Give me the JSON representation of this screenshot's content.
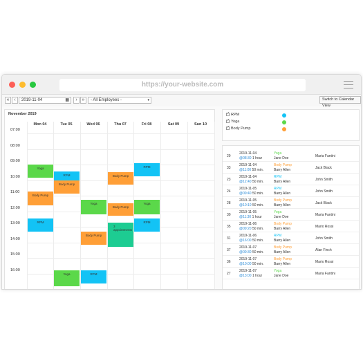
{
  "browser": {
    "url": "https://your-website.com"
  },
  "toolbar": {
    "prev": "‹",
    "next": "›",
    "prev_far": "«",
    "next_far": "»",
    "date": "2019-11-04",
    "employees": "- All Employees -",
    "switch": "Switch to Calendar View"
  },
  "calendar": {
    "title": "November 2019",
    "days": [
      "Mon 04",
      "Tue 05",
      "Wed 06",
      "Thu 07",
      "Fri 08",
      "Sat 09",
      "Sun 10"
    ],
    "times": [
      "07:00",
      "08:00",
      "09:00",
      "10:00",
      "11:00",
      "12:00",
      "13:00",
      "14:00",
      "15:00",
      "16:00"
    ],
    "events": [
      {
        "label": "Yoga",
        "day": 0,
        "start": 9.0,
        "end": 9.83,
        "color": "#5bd84a"
      },
      {
        "label": "RPM",
        "day": 1,
        "start": 9.45,
        "end": 10.2,
        "color": "#13c3f5"
      },
      {
        "label": "Body Pump",
        "day": 1,
        "start": 10.0,
        "end": 10.85,
        "color": "#ff9f37"
      },
      {
        "label": "Body Pump",
        "day": 0,
        "start": 10.75,
        "end": 11.6,
        "color": "#ff9f37"
      },
      {
        "label": "RPM",
        "day": 0,
        "start": 12.45,
        "end": 13.3,
        "color": "#13c3f5"
      },
      {
        "label": "Yoga",
        "day": 2,
        "start": 11.25,
        "end": 12.2,
        "color": "#5bd84a"
      },
      {
        "label": "Body Pump",
        "day": 3,
        "start": 9.5,
        "end": 10.3,
        "color": "#ff9f37"
      },
      {
        "label": "Body Pump",
        "day": 3,
        "start": 11.5,
        "end": 12.3,
        "color": "#ff9f37"
      },
      {
        "label": "RPM",
        "day": 4,
        "start": 8.9,
        "end": 9.75,
        "color": "#13c3f5"
      },
      {
        "label": "Yoga",
        "day": 4,
        "start": 11.25,
        "end": 12.2,
        "color": "#5bd84a"
      },
      {
        "label": "RPM",
        "day": 4,
        "start": 12.45,
        "end": 13.3,
        "color": "#13c3f5"
      },
      {
        "label": "Body Pump",
        "day": 2,
        "start": 13.3,
        "end": 14.15,
        "color": "#ff9f37"
      },
      {
        "label": "3 appointments",
        "day": 3,
        "start": 12.75,
        "end": 14.3,
        "color": "#1dcc92",
        "left": true
      },
      {
        "label": "Yoga",
        "day": 1,
        "start": 15.8,
        "end": 16.8,
        "color": "#5bd84a"
      },
      {
        "label": "RPM",
        "day": 2,
        "start": 15.8,
        "end": 16.65,
        "color": "#13c3f5"
      }
    ]
  },
  "legend": [
    {
      "label": "RPM",
      "color": "#13c3f5"
    },
    {
      "label": "Yoga",
      "color": "#5bd84a"
    },
    {
      "label": "Body Pump",
      "color": "#ff9f37"
    }
  ],
  "appointments": [
    {
      "id": "29",
      "date": "2019-11-04",
      "time": "@08:30 1 hour",
      "service": "Yoga",
      "service_color": "#5bd84a",
      "employee": "Jane Doe",
      "customer": "Maria Fantini"
    },
    {
      "id": "33",
      "date": "2019-11-04",
      "time": "@11:00 50 min.",
      "service": "Body Pump",
      "service_color": "#ff9f37",
      "employee": "Barry Allen",
      "customer": "Jack Black"
    },
    {
      "id": "23",
      "date": "2019-11-04",
      "time": "@12:40 50 min.",
      "service": "RPM",
      "service_color": "#13c3f5",
      "employee": "Barry Allen",
      "customer": "John Smith"
    },
    {
      "id": "24",
      "date": "2019-11-05",
      "time": "@09:40 50 min.",
      "service": "RPM",
      "service_color": "#13c3f5",
      "employee": "Barry Allen",
      "customer": "John Smith"
    },
    {
      "id": "28",
      "date": "2019-11-05",
      "time": "@10:10 50 min.",
      "service": "Body Pump",
      "service_color": "#ff9f37",
      "employee": "Barry Allen",
      "customer": "Jack Black"
    },
    {
      "id": "30",
      "date": "2019-11-05",
      "time": "@11:30 1 hour",
      "service": "Yoga",
      "service_color": "#5bd84a",
      "employee": "Jane Doe",
      "customer": "Maria Fantini"
    },
    {
      "id": "35",
      "date": "2019-11-06",
      "time": "@09:20 50 min.",
      "service": "Body Pump",
      "service_color": "#ff9f37",
      "employee": "Barry Allen",
      "customer": "Mario Rossi"
    },
    {
      "id": "31",
      "date": "2019-11-06",
      "time": "@16:00 50 min.",
      "service": "RPM",
      "service_color": "#13c3f5",
      "employee": "Barry Allen",
      "customer": "John Smith"
    },
    {
      "id": "37",
      "date": "2019-11-07",
      "time": "@09:30 50 min.",
      "service": "Body Pump",
      "service_color": "#ff9f37",
      "employee": "Barry Allen",
      "customer": "Alan Finch"
    },
    {
      "id": "36",
      "date": "2019-11-07",
      "time": "@10:00 50 min.",
      "service": "Body Pump",
      "service_color": "#ff9f37",
      "employee": "Barry Allen",
      "customer": "Mario Rossi"
    },
    {
      "id": "27",
      "date": "2019-11-07",
      "time": "@13:00 1 hour",
      "service": "Yoga",
      "service_color": "#5bd84a",
      "employee": "Jane Doe",
      "customer": "Maria Fantini"
    }
  ]
}
